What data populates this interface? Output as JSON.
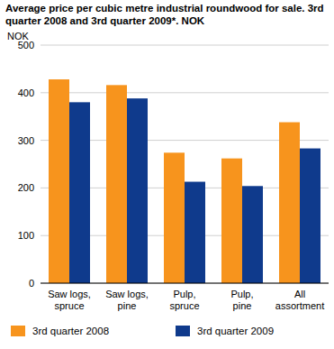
{
  "chart_data": {
    "type": "bar",
    "title": "Average price per cubic metre industrial roundwood for sale. 3rd quarter 2008 and  3rd quarter 2009*. NOK",
    "y_label": "NOK",
    "categories": [
      "Saw logs, spruce",
      "Saw logs, pine",
      "Pulp, spruce",
      "Pulp, pine",
      "All assortment"
    ],
    "series": [
      {
        "name": "3rd quarter 2008",
        "color": "#f7941d",
        "values": [
          428,
          416,
          274,
          262,
          338
        ]
      },
      {
        "name": "3rd quarter 2009",
        "color": "#0f3a8c",
        "values": [
          380,
          388,
          213,
          204,
          283
        ]
      }
    ],
    "ylim": [
      0,
      500
    ],
    "yticks": [
      0,
      100,
      200,
      300,
      400,
      500
    ],
    "grid": true,
    "legend": "bottom"
  }
}
